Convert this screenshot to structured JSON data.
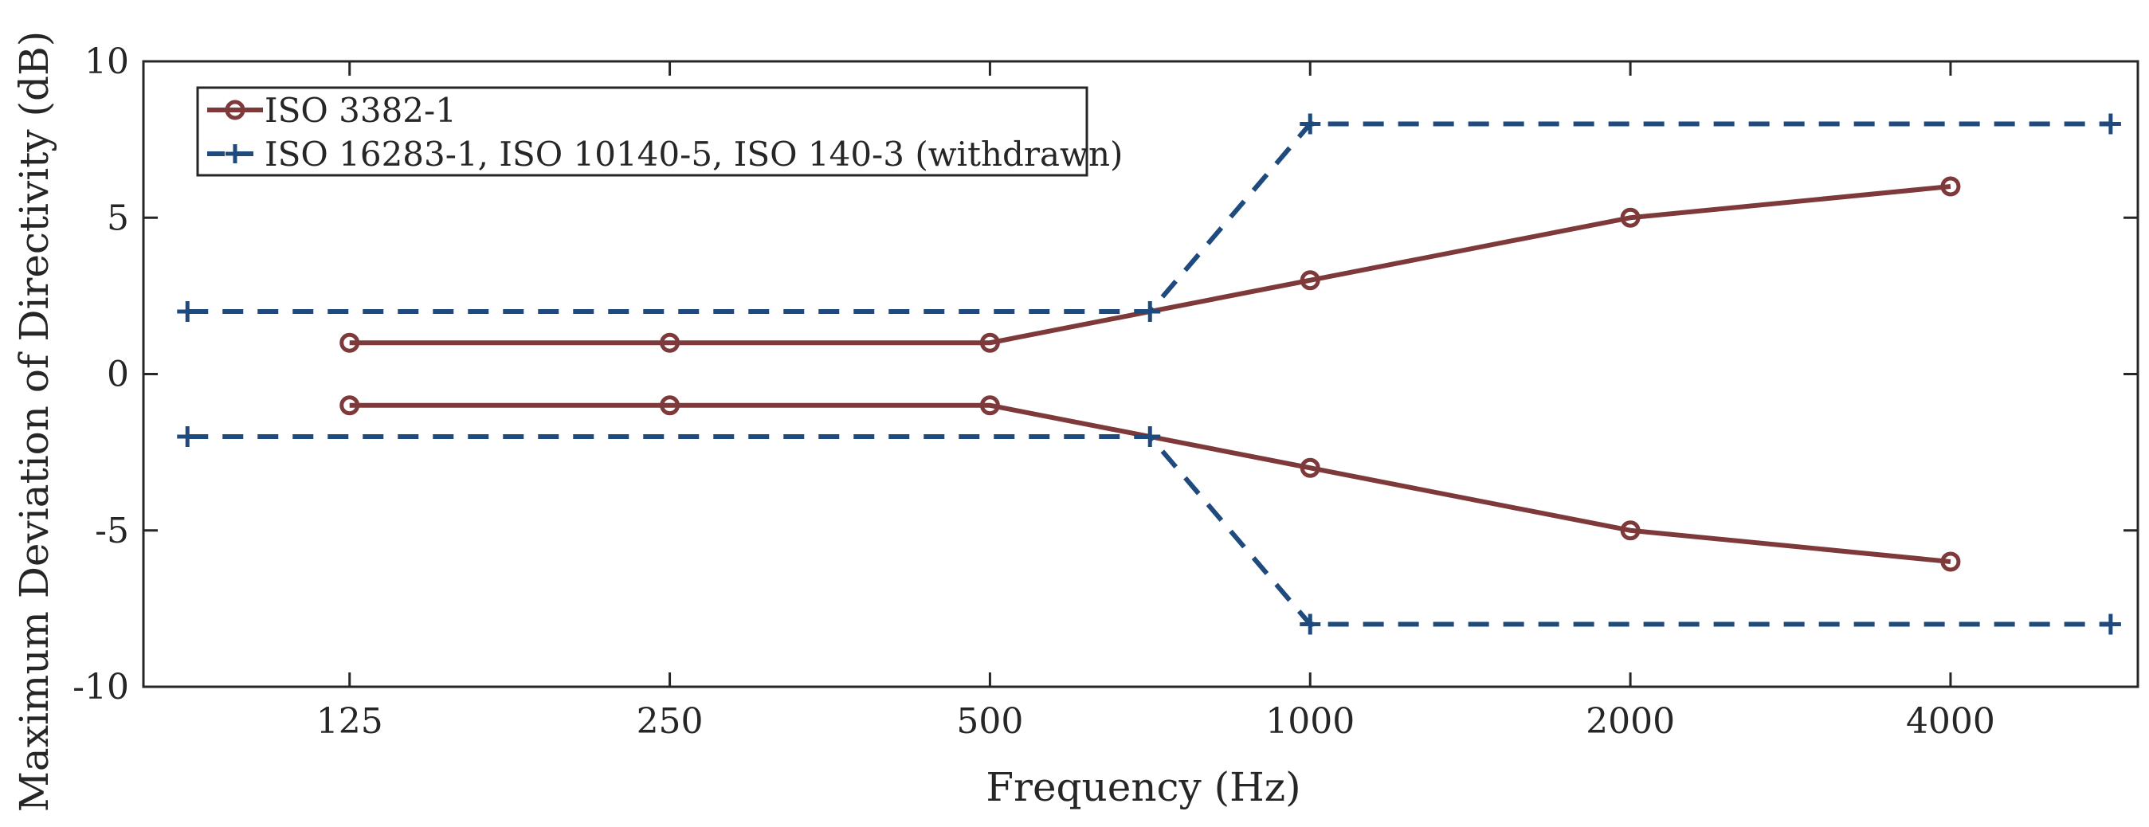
{
  "chart_data": {
    "type": "line",
    "xlabel": "Frequency (Hz)",
    "ylabel": "Maximum Deviation of Directivity (dB)",
    "x_scale": "log2",
    "xlim": [
      80,
      6000
    ],
    "ylim": [
      -10,
      10
    ],
    "x_ticks": [
      125,
      250,
      500,
      1000,
      2000,
      4000
    ],
    "x_tick_labels": [
      "125",
      "250",
      "500",
      "1000",
      "2000",
      "4000"
    ],
    "y_ticks": [
      -10,
      -5,
      0,
      5,
      10
    ],
    "y_tick_labels": [
      "-10",
      "-5",
      "0",
      "5",
      "10"
    ],
    "grid": false,
    "legend_position": "top-left",
    "series": [
      {
        "name": "ISO 3382-1",
        "color": "#7e3a3a",
        "line_style": "solid",
        "marker": "circle",
        "x": [
          125,
          250,
          500,
          1000,
          2000,
          4000
        ],
        "upper": [
          1,
          1,
          1,
          3,
          5,
          6
        ],
        "lower": [
          -1,
          -1,
          -1,
          -3,
          -5,
          -6
        ]
      },
      {
        "name": "ISO 16283-1, ISO 10140-5, ISO 140-3 (withdrawn)",
        "color": "#1f4a7d",
        "line_style": "dashed",
        "marker": "plus",
        "x": [
          88,
          707,
          1000,
          5657
        ],
        "upper": [
          2,
          2,
          8,
          8
        ],
        "lower": [
          -2,
          -2,
          -8,
          -8
        ]
      }
    ]
  }
}
